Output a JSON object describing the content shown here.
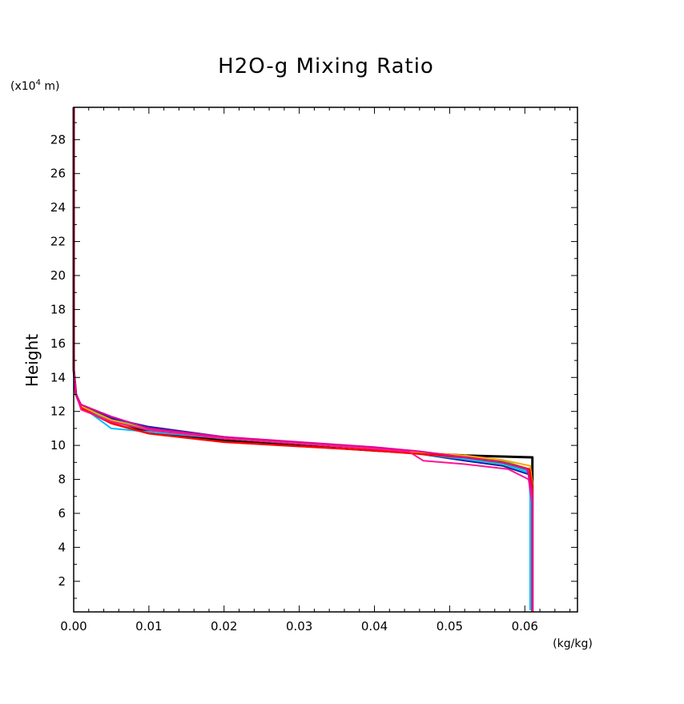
{
  "chart_data": {
    "type": "line",
    "title": "H2O-g Mixing Ratio",
    "xlabel": "",
    "ylabel": "Height",
    "x_unit": "(kg/kg)",
    "y_unit_prefix": "(x10",
    "y_unit_exp": "4",
    "y_unit_suffix": " m)",
    "xlim": [
      0.0,
      0.067
    ],
    "ylim": [
      0.2,
      29.9
    ],
    "x_ticks": [
      0.0,
      0.01,
      0.02,
      0.03,
      0.04,
      0.05,
      0.06
    ],
    "x_tick_labels": [
      "0.00",
      "0.01",
      "0.02",
      "0.03",
      "0.04",
      "0.05",
      "0.06"
    ],
    "y_ticks": [
      2,
      4,
      6,
      8,
      10,
      12,
      14,
      16,
      18,
      20,
      22,
      24,
      26,
      28
    ],
    "y_tick_labels": [
      "2",
      "4",
      "6",
      "8",
      "10",
      "12",
      "14",
      "16",
      "18",
      "20",
      "22",
      "24",
      "26",
      "28"
    ],
    "grid": false,
    "legend": "none",
    "series": [
      {
        "color": "#000000",
        "width": 3,
        "x": [
          0.0,
          0.0,
          0.0003,
          0.001,
          0.005,
          0.01,
          0.02,
          0.03,
          0.04,
          0.046,
          0.052,
          0.0608,
          0.061,
          0.061,
          0.061
        ],
        "y": [
          29.9,
          14.5,
          13.0,
          12.3,
          11.5,
          10.8,
          10.3,
          10.0,
          9.7,
          9.55,
          9.4,
          9.3,
          9.3,
          5.0,
          0.2
        ]
      },
      {
        "color": "#1a1aa6",
        "width": 2,
        "x": [
          0.0,
          0.0,
          0.0003,
          0.001,
          0.005,
          0.01,
          0.02,
          0.03,
          0.04,
          0.046,
          0.052,
          0.057,
          0.0605,
          0.061,
          0.061
        ],
        "y": [
          29.9,
          14.5,
          13.0,
          12.3,
          11.6,
          11.1,
          10.5,
          10.1,
          9.8,
          9.5,
          9.1,
          8.8,
          8.3,
          7.0,
          0.2
        ]
      },
      {
        "color": "#00bfff",
        "width": 2,
        "x": [
          0.0,
          0.0,
          0.0003,
          0.001,
          0.005,
          0.01,
          0.02,
          0.03,
          0.04,
          0.046,
          0.052,
          0.057,
          0.0605,
          0.0607,
          0.0607
        ],
        "y": [
          29.9,
          14.5,
          13.0,
          12.3,
          11.0,
          10.8,
          10.4,
          10.1,
          9.8,
          9.5,
          9.2,
          8.9,
          8.4,
          7.0,
          0.3
        ]
      },
      {
        "color": "#00c8c8",
        "width": 2,
        "x": [
          0.0,
          0.0,
          0.0003,
          0.001,
          0.005,
          0.01,
          0.02,
          0.03,
          0.04,
          0.046,
          0.052,
          0.057,
          0.0604,
          0.061,
          0.061
        ],
        "y": [
          29.9,
          14.5,
          13.0,
          12.2,
          11.4,
          10.9,
          10.4,
          10.1,
          9.8,
          9.55,
          9.25,
          8.9,
          8.5,
          7.2,
          0.2
        ]
      },
      {
        "color": "#32cd32",
        "width": 2,
        "x": [
          0.0,
          0.0,
          0.0003,
          0.001,
          0.005,
          0.01,
          0.02,
          0.03,
          0.04,
          0.046,
          0.052,
          0.057,
          0.0606,
          0.061,
          0.061
        ],
        "y": [
          29.9,
          14.5,
          13.0,
          12.3,
          11.5,
          11.0,
          10.5,
          10.15,
          9.85,
          9.6,
          9.35,
          9.1,
          8.6,
          7.5,
          0.2
        ]
      },
      {
        "color": "#ffa500",
        "width": 2,
        "x": [
          0.0,
          0.0,
          0.0003,
          0.001,
          0.005,
          0.01,
          0.02,
          0.03,
          0.04,
          0.046,
          0.052,
          0.057,
          0.0607,
          0.061,
          0.061
        ],
        "y": [
          29.9,
          14.5,
          13.0,
          12.3,
          11.5,
          10.9,
          10.4,
          10.1,
          9.8,
          9.6,
          9.4,
          9.15,
          8.8,
          7.8,
          0.2
        ]
      },
      {
        "color": "#ff0000",
        "width": 2.5,
        "x": [
          0.0,
          0.0,
          0.0003,
          0.001,
          0.005,
          0.01,
          0.02,
          0.03,
          0.04,
          0.046,
          0.052,
          0.057,
          0.0606,
          0.061,
          0.061
        ],
        "y": [
          29.9,
          14.5,
          13.0,
          12.2,
          11.3,
          10.7,
          10.2,
          9.95,
          9.7,
          9.5,
          9.3,
          9.0,
          8.6,
          7.5,
          0.2
        ]
      },
      {
        "color": "#ff1493",
        "width": 2,
        "x": [
          0.0,
          0.0,
          0.0003,
          0.001,
          0.005,
          0.01,
          0.02,
          0.03,
          0.04,
          0.0445,
          0.0465,
          0.052,
          0.0578,
          0.0605,
          0.061,
          0.061
        ],
        "y": [
          29.9,
          14.5,
          13.0,
          12.1,
          11.4,
          10.9,
          10.4,
          10.1,
          9.8,
          9.65,
          9.1,
          8.9,
          8.6,
          8.0,
          6.5,
          0.2
        ]
      },
      {
        "color": "#e60099",
        "width": 2,
        "x": [
          0.0,
          0.0,
          0.0003,
          0.001,
          0.005,
          0.01,
          0.02,
          0.03,
          0.04,
          0.046,
          0.052,
          0.057,
          0.0603,
          0.061,
          0.061
        ],
        "y": [
          29.9,
          14.5,
          13.0,
          12.4,
          11.7,
          11.0,
          10.5,
          10.2,
          9.9,
          9.65,
          9.3,
          9.0,
          8.6,
          7.2,
          0.2
        ]
      }
    ]
  }
}
